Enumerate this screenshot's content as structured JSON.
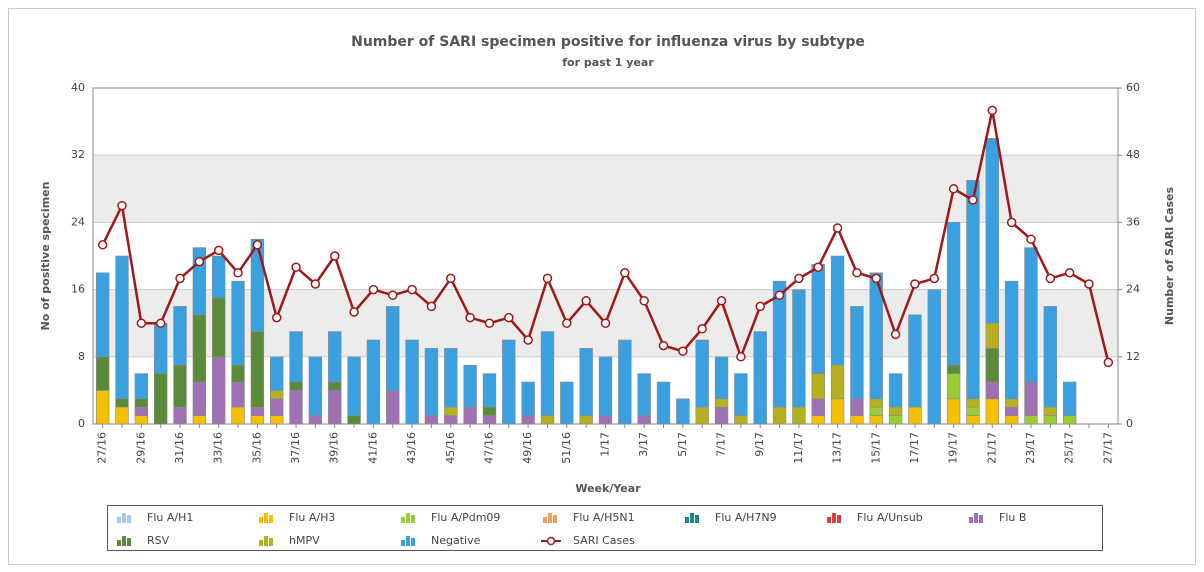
{
  "chart_data": {
    "type": "bar",
    "stacked": true,
    "title": "Number of SARI specimen positive for influenza virus by subtype",
    "subtitle": "for past 1 year",
    "x_label": "Week/Year",
    "y_label": "No of positive specimen",
    "y2_label": "Number of SARI Cases",
    "ylim": [
      0,
      40
    ],
    "yticks": [
      0,
      8,
      16,
      24,
      32,
      40
    ],
    "y2lim": [
      0,
      60
    ],
    "y2ticks": [
      0,
      12,
      24,
      36,
      48,
      60
    ],
    "categories": [
      "27/16",
      null,
      "29/16",
      null,
      "31/16",
      null,
      "33/16",
      null,
      "35/16",
      null,
      "37/16",
      null,
      "39/16",
      null,
      "41/16",
      null,
      "43/16",
      null,
      "45/16",
      null,
      "47/16",
      null,
      "49/16",
      null,
      "51/16",
      null,
      "1/17",
      null,
      "3/17",
      null,
      "5/17",
      null,
      "7/17",
      null,
      "9/17",
      null,
      "11/17",
      null,
      "13/17",
      null,
      "15/17",
      null,
      "17/17",
      null,
      "19/17",
      null,
      "21/17",
      null,
      "23/17",
      null,
      "25/17",
      null,
      "27/17"
    ],
    "series": [
      {
        "name": "Flu A/H1",
        "color": "#a8c8ec",
        "values": [
          0,
          0,
          0,
          0,
          0,
          0,
          0,
          0,
          0,
          0,
          0,
          0,
          0,
          0,
          0,
          0,
          0,
          0,
          0,
          0,
          0,
          0,
          0,
          0,
          0,
          0,
          0,
          0,
          0,
          0,
          0,
          0,
          0,
          0,
          0,
          0,
          0,
          0,
          0,
          0,
          0,
          0,
          0,
          0,
          0,
          0,
          0,
          0,
          0,
          0,
          0,
          0,
          0
        ]
      },
      {
        "name": "Flu A/H3",
        "color": "#f5c000",
        "values": [
          4,
          2,
          1,
          0,
          0,
          1,
          0,
          2,
          1,
          1,
          0,
          0,
          0,
          0,
          0,
          0,
          0,
          0,
          0,
          0,
          0,
          0,
          0,
          0,
          0,
          0,
          0,
          0,
          0,
          0,
          0,
          0,
          0,
          0,
          0,
          0,
          0,
          1,
          3,
          1,
          1,
          0,
          2,
          0,
          3,
          1,
          3,
          1,
          0,
          0,
          0,
          0,
          0
        ]
      },
      {
        "name": "Flu A/Pdm09",
        "color": "#9acd32",
        "values": [
          0,
          0,
          0,
          0,
          0,
          0,
          0,
          0,
          0,
          0,
          0,
          0,
          0,
          0,
          0,
          0,
          0,
          0,
          0,
          0,
          0,
          0,
          0,
          0,
          0,
          0,
          0,
          0,
          0,
          0,
          0,
          0,
          0,
          0,
          0,
          0,
          0,
          0,
          0,
          0,
          1,
          1,
          0,
          0,
          3,
          1,
          0,
          0,
          1,
          1,
          1,
          0,
          0
        ]
      },
      {
        "name": "Flu A/H5N1",
        "color": "#f4a060",
        "values": [
          0,
          0,
          0,
          0,
          0,
          0,
          0,
          0,
          0,
          0,
          0,
          0,
          0,
          0,
          0,
          0,
          0,
          0,
          0,
          0,
          0,
          0,
          0,
          0,
          0,
          0,
          0,
          0,
          0,
          0,
          0,
          0,
          0,
          0,
          0,
          0,
          0,
          0,
          0,
          0,
          0,
          0,
          0,
          0,
          0,
          0,
          0,
          0,
          0,
          0,
          0,
          0,
          0
        ]
      },
      {
        "name": "Flu A/H7N9",
        "color": "#1a8a8a",
        "values": [
          0,
          0,
          0,
          0,
          0,
          0,
          0,
          0,
          0,
          0,
          0,
          0,
          0,
          0,
          0,
          0,
          0,
          0,
          0,
          0,
          0,
          0,
          0,
          0,
          0,
          0,
          0,
          0,
          0,
          0,
          0,
          0,
          0,
          0,
          0,
          0,
          0,
          0,
          0,
          0,
          0,
          0,
          0,
          0,
          0,
          0,
          0,
          0,
          0,
          0,
          0,
          0,
          0
        ]
      },
      {
        "name": "Flu A/Unsub",
        "color": "#d94040",
        "values": [
          0,
          0,
          0,
          0,
          0,
          0,
          0,
          0,
          0,
          0,
          0,
          0,
          0,
          0,
          0,
          0,
          0,
          0,
          0,
          0,
          0,
          0,
          0,
          0,
          0,
          0,
          0,
          0,
          0,
          0,
          0,
          0,
          0,
          0,
          0,
          0,
          0,
          0,
          0,
          0,
          0,
          0,
          0,
          0,
          0,
          0,
          0,
          0,
          0,
          0,
          0,
          0,
          0
        ]
      },
      {
        "name": "Flu B",
        "color": "#a070b4",
        "values": [
          0,
          0,
          1,
          0,
          2,
          4,
          8,
          3,
          1,
          2,
          4,
          1,
          4,
          0,
          0,
          4,
          0,
          1,
          1,
          2,
          1,
          0,
          1,
          0,
          0,
          0,
          1,
          0,
          1,
          0,
          0,
          0,
          2,
          0,
          0,
          0,
          0,
          2,
          0,
          2,
          0,
          0,
          0,
          0,
          0,
          0,
          2,
          1,
          4,
          0,
          0,
          0,
          0
        ]
      },
      {
        "name": "RSV",
        "color": "#5a8a3a",
        "values": [
          4,
          1,
          1,
          6,
          5,
          8,
          7,
          2,
          9,
          0,
          1,
          0,
          1,
          1,
          0,
          0,
          0,
          0,
          0,
          0,
          1,
          0,
          0,
          0,
          0,
          0,
          0,
          0,
          0,
          0,
          0,
          0,
          0,
          0,
          0,
          0,
          0,
          0,
          0,
          0,
          0,
          0,
          0,
          0,
          1,
          0,
          4,
          0,
          0,
          0,
          0,
          0,
          0
        ]
      },
      {
        "name": "hMPV",
        "color": "#b5b020",
        "values": [
          0,
          0,
          0,
          0,
          0,
          0,
          0,
          0,
          0,
          1,
          0,
          0,
          0,
          0,
          0,
          0,
          0,
          0,
          1,
          0,
          0,
          0,
          0,
          1,
          0,
          1,
          0,
          0,
          0,
          0,
          0,
          2,
          1,
          1,
          0,
          2,
          2,
          3,
          4,
          0,
          1,
          1,
          0,
          0,
          0,
          1,
          3,
          1,
          0,
          1,
          0,
          0,
          0
        ]
      },
      {
        "name": "Negative",
        "color": "#3aa0e0",
        "values": [
          10,
          17,
          3,
          6,
          7,
          8,
          5,
          10,
          11,
          4,
          6,
          7,
          6,
          7,
          10,
          10,
          10,
          8,
          7,
          5,
          4,
          10,
          4,
          10,
          5,
          8,
          7,
          10,
          5,
          5,
          3,
          8,
          5,
          5,
          11,
          15,
          14,
          13,
          13,
          11,
          15,
          4,
          11,
          16,
          17,
          26,
          22,
          14,
          16,
          12,
          4,
          0,
          0
        ]
      },
      {
        "name": "SARI Cases",
        "type": "line",
        "axis": "y2",
        "color": "#a01818",
        "values": [
          32,
          39,
          18,
          18,
          26,
          29,
          31,
          27,
          32,
          19,
          28,
          25,
          30,
          20,
          24,
          23,
          24,
          21,
          26,
          19,
          18,
          19,
          15,
          26,
          18,
          22,
          18,
          27,
          22,
          14,
          13,
          17,
          22,
          12,
          21,
          23,
          26,
          28,
          35,
          27,
          26,
          16,
          25,
          26,
          42,
          40,
          56,
          36,
          33,
          26,
          27,
          25,
          11
        ]
      }
    ]
  }
}
